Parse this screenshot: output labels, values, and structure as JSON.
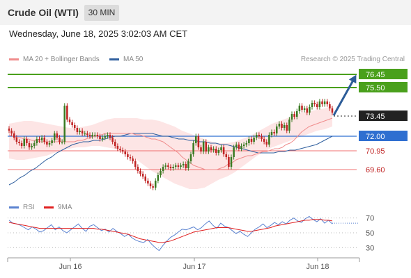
{
  "header": {
    "title": "Crude Oil (WTI)",
    "timeframe": "30 MIN",
    "datetime": "Wednesday, June 18, 2025 3:02:03 AM CET"
  },
  "legend": {
    "main": [
      {
        "label": "MA 20 + Bollinger Bands",
        "color": "#f08c8c"
      },
      {
        "label": "MA 50",
        "color": "#2f5f9e"
      }
    ],
    "rsi": [
      {
        "label": "RSI",
        "color": "#5a82d0"
      },
      {
        "label": "9MA",
        "color": "#e02020"
      }
    ]
  },
  "credit": "Research © 2025 Trading Central",
  "colors": {
    "up": "#3a7a22",
    "down": "#c02323",
    "resistance": "#4aa01c",
    "pivot": "#2f6fd0",
    "support": "#f07070",
    "current": "#222222",
    "arrow": "#2c5c98",
    "band": "#fde0e0"
  },
  "chart_data": [
    {
      "type": "candlestick",
      "x_ticks": [
        "Jun 16",
        "Jun 17",
        "Jun 18"
      ],
      "levels": [
        {
          "value": 76.45,
          "label": "76.45",
          "kind": "resistance"
        },
        {
          "value": 75.5,
          "label": "75.50",
          "kind": "resistance"
        },
        {
          "value": 73.45,
          "label": "73.45",
          "kind": "current"
        },
        {
          "value": 72.0,
          "label": "72.00",
          "kind": "pivot"
        },
        {
          "value": 70.95,
          "label": "70.95",
          "kind": "support"
        },
        {
          "value": 69.6,
          "label": "69.60",
          "kind": "support"
        }
      ],
      "close": [
        72.4,
        72.2,
        71.9,
        71.6,
        71.5,
        71.3,
        71.8,
        71.5,
        71.2,
        71.3,
        71.5,
        71.8,
        71.7,
        71.9,
        71.6,
        71.4,
        71.5,
        71.7,
        72.2,
        71.9,
        71.6,
        71.6,
        74.2,
        73.2,
        73.0,
        72.8,
        72.6,
        72.3,
        72.4,
        72.2,
        72.2,
        72.1,
        72.0,
        72.1,
        72.1,
        72.0,
        71.8,
        71.9,
        72.0,
        72.1,
        71.9,
        71.6,
        71.3,
        71.1,
        71.0,
        70.9,
        70.7,
        70.5,
        70.4,
        70.2,
        69.8,
        69.5,
        69.3,
        69.1,
        68.8,
        68.6,
        68.4,
        68.3,
        68.8,
        69.2,
        69.5,
        69.8,
        69.9,
        69.8,
        69.7,
        69.8,
        69.9,
        69.8,
        69.9,
        70.0,
        69.7,
        70.2,
        70.7,
        71.5,
        72.0,
        71.2,
        70.9,
        71.6,
        70.9,
        71.2,
        71.0,
        71.1,
        70.8,
        71.0,
        71.2,
        70.7,
        70.5,
        69.8,
        70.5,
        71.2,
        71.4,
        71.1,
        71.3,
        71.4,
        71.5,
        71.8,
        71.6,
        71.9,
        72.1,
        72.0,
        71.8,
        71.6,
        71.4,
        72.1,
        72.3,
        72.2,
        72.7,
        72.9,
        72.6,
        72.8,
        72.4,
        73.2,
        73.6,
        73.4,
        73.8,
        74.2,
        73.9,
        74.0,
        73.7,
        74.1,
        74.4,
        74.3,
        74.1,
        74.5,
        74.3,
        74.5,
        74.3,
        74.0,
        73.7
      ],
      "ma20": [
        72.1,
        72.0,
        71.9,
        71.9,
        71.8,
        71.8,
        71.7,
        71.7,
        71.6,
        71.6,
        71.6,
        71.6,
        71.6,
        71.6,
        71.6,
        71.6,
        71.6,
        71.6,
        71.7,
        71.7,
        71.8,
        71.9,
        72.0,
        72.0,
        72.1,
        72.2,
        72.2,
        72.2,
        72.2,
        72.2,
        72.2,
        72.2,
        72.2,
        72.1,
        72.1,
        72.0,
        71.9,
        71.8,
        71.8,
        71.7,
        71.6,
        71.4,
        71.2,
        71.0,
        70.8,
        70.5,
        70.3,
        70.1,
        69.9,
        69.8,
        69.7,
        69.6,
        69.6,
        69.6,
        69.6,
        69.7,
        69.8,
        70.0,
        70.1,
        70.3,
        70.4,
        70.5,
        70.6,
        70.6,
        70.7,
        70.8,
        70.9,
        70.9,
        71.0,
        71.1,
        71.1,
        71.2,
        71.4,
        71.5,
        71.7,
        72.0,
        72.3,
        72.5,
        72.7,
        72.8,
        72.9,
        73.0,
        73.1,
        73.2,
        73.3
      ],
      "ma50": [
        68.5,
        68.7,
        69.0,
        69.2,
        69.5,
        69.7,
        70.0,
        70.3,
        70.5,
        70.8,
        71.0,
        71.2,
        71.4,
        71.5,
        71.6,
        71.6,
        71.7,
        71.7,
        71.8,
        71.9,
        72.0,
        72.0,
        72.1,
        72.2,
        72.2,
        72.2,
        72.2,
        72.2,
        72.1,
        72.0,
        72.0,
        71.9,
        71.8,
        71.8,
        71.7,
        71.7,
        71.6,
        71.6,
        71.5,
        71.5,
        71.4,
        71.4,
        71.3,
        71.2,
        71.1,
        71.0,
        70.9,
        70.8,
        70.8,
        70.8,
        70.8,
        70.9,
        70.9,
        71.0,
        71.0,
        71.1,
        71.2,
        71.3,
        71.4,
        71.6,
        71.8,
        72.0
      ],
      "band_upper": [
        72.9,
        73.0,
        73.1,
        73.1,
        73.0,
        72.9,
        72.8,
        72.7,
        72.6,
        72.6,
        72.7,
        72.8,
        73.0,
        73.2,
        73.3,
        73.3,
        73.3,
        73.3,
        73.2,
        73.2,
        73.1,
        72.9,
        72.7,
        72.4,
        72.2,
        72.0,
        71.8,
        71.6,
        71.5,
        71.5,
        71.6,
        71.8,
        72.0,
        72.3,
        72.6,
        72.9,
        73.1,
        73.3,
        73.5,
        73.7,
        73.8,
        73.9,
        74.0,
        74.2
      ],
      "band_lower": [
        70.4,
        70.3,
        70.3,
        70.4,
        70.5,
        70.6,
        70.8,
        71.0,
        71.1,
        71.2,
        71.2,
        71.3,
        71.3,
        71.2,
        71.1,
        70.9,
        70.6,
        70.3,
        69.9,
        69.5,
        69.2,
        68.9,
        68.6,
        68.4,
        68.2,
        68.2,
        68.3,
        68.6,
        68.9,
        69.1,
        69.4,
        69.8,
        70.2,
        70.6,
        70.9,
        71.2,
        71.4,
        71.6,
        71.8,
        72.0,
        72.2,
        72.4,
        72.5,
        72.7
      ],
      "projection": {
        "from": 73.45,
        "to": 76.45
      }
    },
    {
      "type": "line",
      "title": "RSI",
      "ylim": [
        20,
        80
      ],
      "y_ticks": [
        70,
        50,
        30
      ],
      "series": [
        {
          "name": "RSI",
          "values": [
            67,
            63,
            62,
            60,
            57,
            54,
            58,
            55,
            51,
            53,
            57,
            61,
            54,
            58,
            53,
            50,
            54,
            58,
            62,
            56,
            52,
            59,
            61,
            57,
            53,
            55,
            51,
            56,
            52,
            49,
            45,
            48,
            43,
            40,
            38,
            37,
            41,
            35,
            30,
            26,
            33,
            39,
            44,
            47,
            51,
            55,
            54,
            56,
            58,
            54,
            57,
            62,
            66,
            60,
            56,
            63,
            59,
            57,
            53,
            49,
            52,
            48,
            45,
            50,
            55,
            58,
            62,
            57,
            60,
            64,
            61,
            65,
            62,
            67,
            70,
            66,
            64,
            69,
            72,
            68,
            65,
            69,
            63,
            67,
            62
          ]
        },
        {
          "name": "9MA",
          "values": [
            64,
            63,
            62,
            61,
            60,
            59,
            58,
            57,
            56,
            56,
            56,
            56,
            56,
            56,
            56,
            56,
            56,
            56,
            56,
            56,
            56,
            56,
            56,
            55,
            55,
            54,
            53,
            52,
            51,
            50,
            49,
            48,
            46,
            44,
            42,
            41,
            40,
            39,
            38,
            37,
            37,
            38,
            39,
            41,
            43,
            45,
            47,
            49,
            51,
            52,
            53,
            54,
            55,
            56,
            57,
            57,
            57,
            57,
            56,
            55,
            54,
            53,
            52,
            52,
            53,
            54,
            55,
            56,
            57,
            59,
            60,
            61,
            62,
            63,
            64,
            65,
            66,
            67,
            67,
            68,
            68,
            68,
            67,
            67,
            66
          ]
        }
      ]
    }
  ]
}
